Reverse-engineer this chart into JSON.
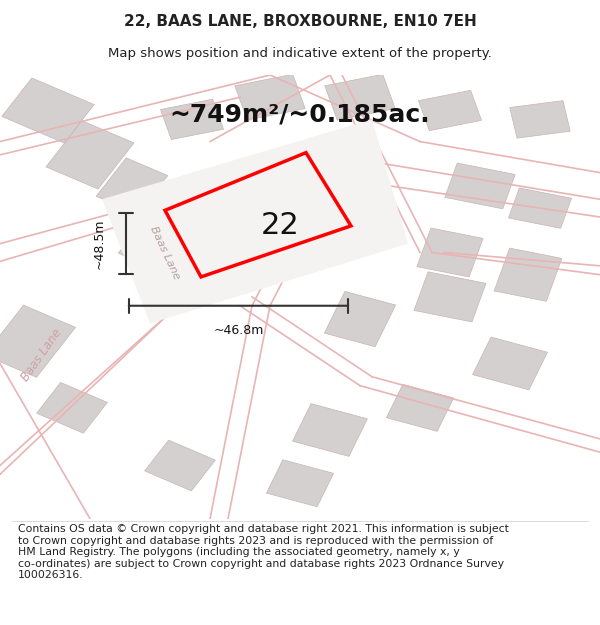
{
  "title": "22, BAAS LANE, BROXBOURNE, EN10 7EH",
  "subtitle": "Map shows position and indicative extent of the property.",
  "area_label": "~749m²/~0.185ac.",
  "plot_number": "22",
  "dim_horizontal": "~46.8m",
  "dim_vertical": "~48.5m",
  "road_label_lower": "Baas Lane",
  "road_label_mid": "Baas Lane",
  "footer_text": "Contains OS data © Crown copyright and database right 2021. This information is subject\nto Crown copyright and database rights 2023 and is reproduced with the permission of\nHM Land Registry. The polygons (including the associated geometry, namely x, y\nco-ordinates) are subject to Crown copyright and database rights 2023 Ordnance Survey\n100026316.",
  "bg_color": "#eeebeb",
  "title_fontsize": 11,
  "subtitle_fontsize": 9.5,
  "area_fontsize": 18,
  "number_fontsize": 22,
  "footer_fontsize": 7.8
}
